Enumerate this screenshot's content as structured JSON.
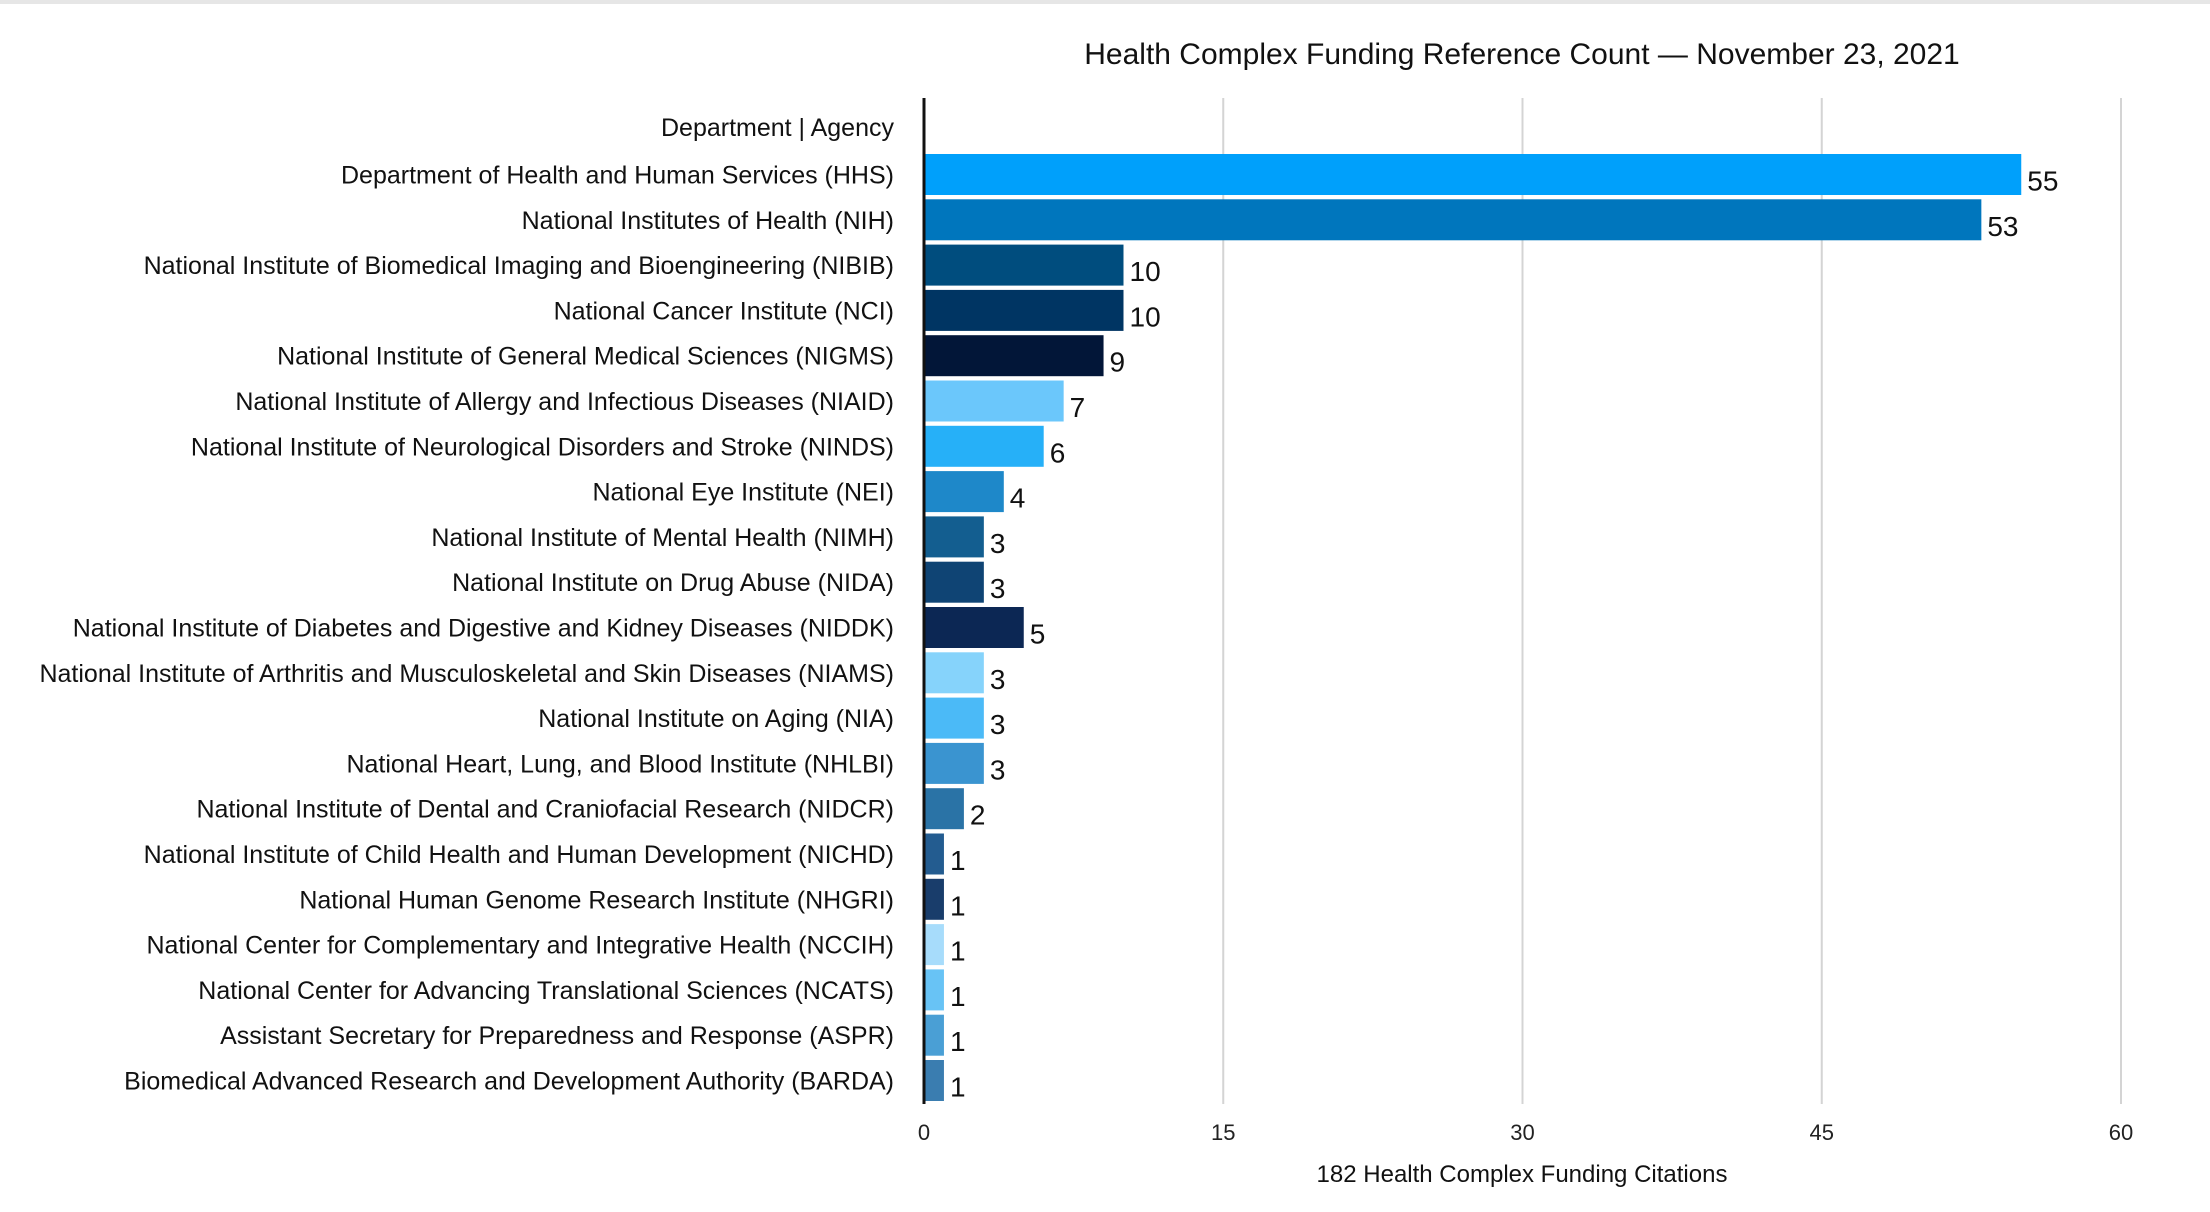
{
  "chart_data": {
    "type": "bar",
    "orientation": "horizontal",
    "title": "Health Complex Funding Reference Count — November 23, 2021",
    "category_header": "Department | Agency",
    "xlabel": "182 Health Complex Funding Citations",
    "xlim": [
      0,
      60
    ],
    "xticks": [
      "0",
      "15",
      "30",
      "45",
      "60"
    ],
    "grid": true,
    "categories": [
      "Department of Health and Human Services (HHS)",
      "National Institutes of Health (NIH)",
      "National Institute of Biomedical Imaging and Bioengineering (NIBIB)",
      "National Cancer Institute (NCI)",
      "National Institute of General Medical Sciences (NIGMS)",
      "National Institute of Allergy and Infectious Diseases (NIAID)",
      "National Institute of Neurological Disorders and Stroke (NINDS)",
      "National Eye Institute (NEI)",
      "National Institute of Mental Health (NIMH)",
      "National Institute on Drug Abuse (NIDA)",
      "National Institute of Diabetes and Digestive and Kidney Diseases (NIDDK)",
      "National Institute of Arthritis and Musculoskeletal and Skin Diseases (NIAMS)",
      "National Institute on Aging (NIA)",
      "National Heart, Lung, and Blood Institute (NHLBI)",
      "National Institute of Dental and Craniofacial Research (NIDCR)",
      "National Institute of Child Health and Human Development (NICHD)",
      "National Human Genome Research Institute (NHGRI)",
      "National Center for Complementary and Integrative Health (NCCIH)",
      "National Center for Advancing Translational Sciences (NCATS)",
      "Assistant Secretary for Preparedness and Response (ASPR)",
      "Biomedical Advanced Research and Development Authority (BARDA)"
    ],
    "values": [
      55,
      53,
      10,
      10,
      9,
      7,
      6,
      4,
      3,
      3,
      5,
      3,
      3,
      3,
      2,
      1,
      1,
      1,
      1,
      1,
      1
    ],
    "colors": [
      "#00a0fb",
      "#0076bd",
      "#004d7e",
      "#003563",
      "#021638",
      "#6bc7fb",
      "#26b0f8",
      "#1e88c9",
      "#135e90",
      "#0f4474",
      "#0c2754",
      "#86d3fb",
      "#4bbaf7",
      "#3a94d0",
      "#2a73a6",
      "#235c90",
      "#193d6b",
      "#a7dcfb",
      "#68c3f5",
      "#4a9fd5",
      "#3a7db0"
    ]
  }
}
